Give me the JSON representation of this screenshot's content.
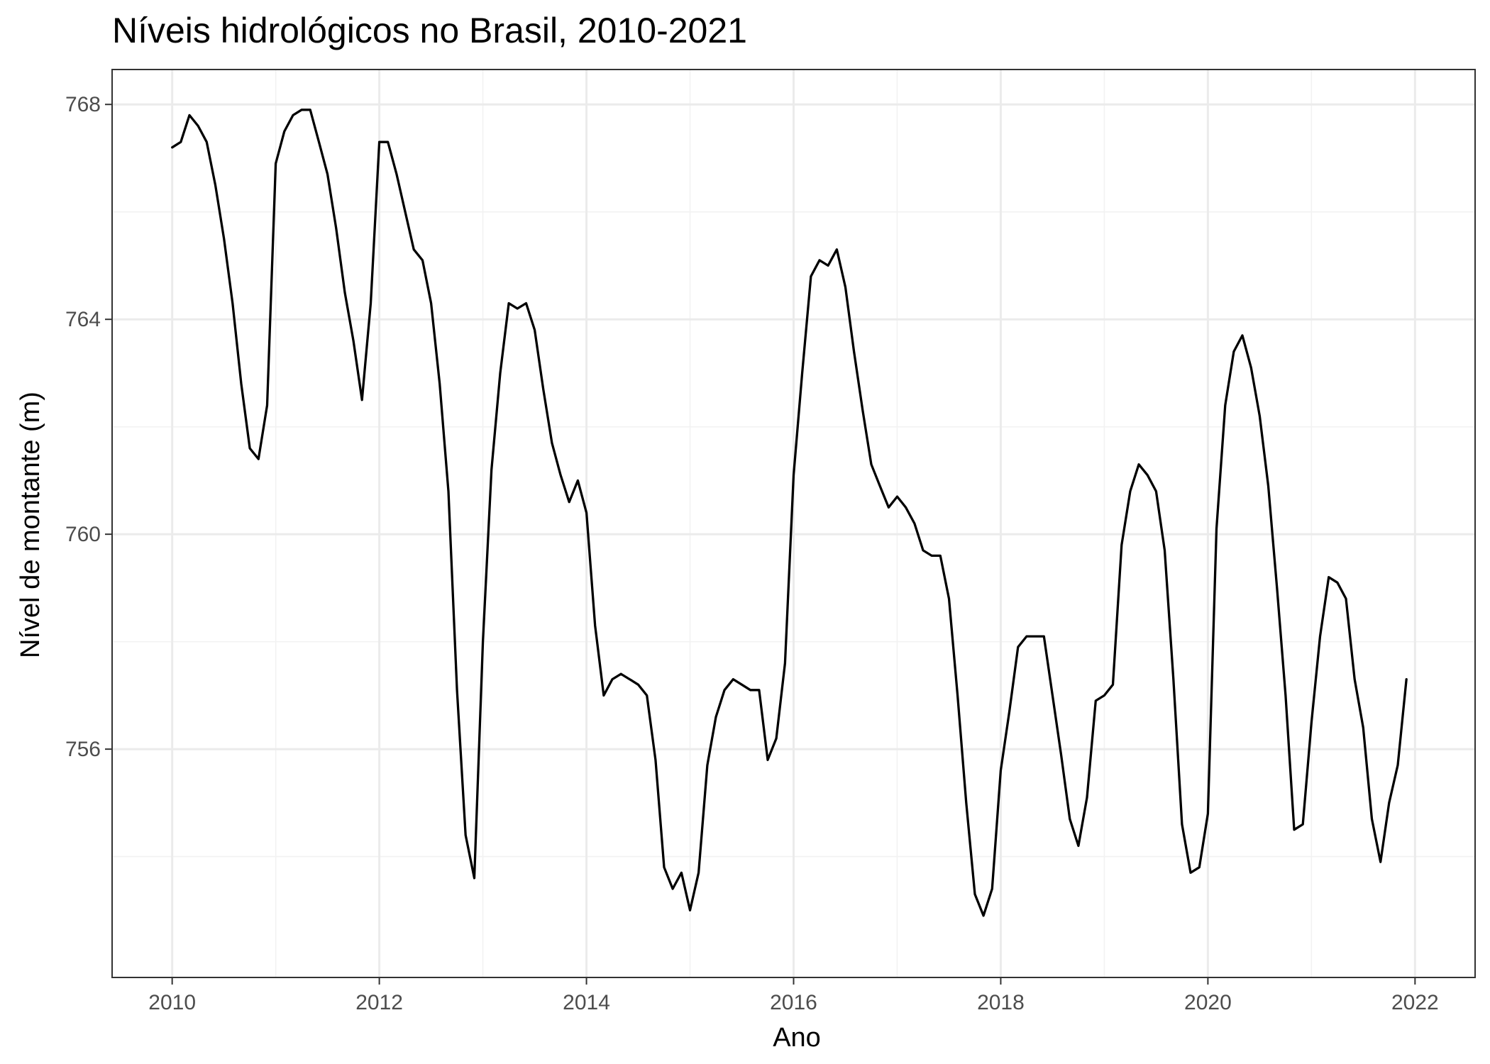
{
  "chart_data": {
    "type": "line",
    "title": "Níveis hidrológicos no Brasil, 2010-2021",
    "xlabel": "Ano",
    "ylabel": "Nível de montante (m)",
    "xlim": [
      2009.42,
      2022.58
    ],
    "ylim": [
      751.75,
      768.65
    ],
    "x_ticks": [
      2010,
      2012,
      2014,
      2016,
      2018,
      2020,
      2022
    ],
    "y_ticks": [
      756,
      760,
      764,
      768
    ],
    "grid": true,
    "legend": "none",
    "line_color": "#000000",
    "series": [
      {
        "x": [
          2010.0,
          2010.083,
          2010.167,
          2010.25,
          2010.333,
          2010.417,
          2010.5,
          2010.583,
          2010.667,
          2010.75,
          2010.833,
          2010.917,
          2011.0,
          2011.083,
          2011.167,
          2011.25,
          2011.333,
          2011.417,
          2011.5,
          2011.583,
          2011.667,
          2011.75,
          2011.833,
          2011.917,
          2012.0,
          2012.083,
          2012.167,
          2012.25,
          2012.333,
          2012.417,
          2012.5,
          2012.583,
          2012.667,
          2012.75,
          2012.833,
          2012.917,
          2013.0,
          2013.083,
          2013.167,
          2013.25,
          2013.333,
          2013.417,
          2013.5,
          2013.583,
          2013.667,
          2013.75,
          2013.833,
          2013.917,
          2014.0,
          2014.083,
          2014.167,
          2014.25,
          2014.333,
          2014.417,
          2014.5,
          2014.583,
          2014.667,
          2014.75,
          2014.833,
          2014.917,
          2015.0,
          2015.083,
          2015.167,
          2015.25,
          2015.333,
          2015.417,
          2015.5,
          2015.583,
          2015.667,
          2015.75,
          2015.833,
          2015.917,
          2016.0,
          2016.083,
          2016.167,
          2016.25,
          2016.333,
          2016.417,
          2016.5,
          2016.583,
          2016.667,
          2016.75,
          2016.833,
          2016.917,
          2017.0,
          2017.083,
          2017.167,
          2017.25,
          2017.333,
          2017.417,
          2017.5,
          2017.583,
          2017.667,
          2017.75,
          2017.833,
          2017.917,
          2018.0,
          2018.083,
          2018.167,
          2018.25,
          2018.333,
          2018.417,
          2018.5,
          2018.583,
          2018.667,
          2018.75,
          2018.833,
          2018.917,
          2019.0,
          2019.083,
          2019.167,
          2019.25,
          2019.333,
          2019.417,
          2019.5,
          2019.583,
          2019.667,
          2019.75,
          2019.833,
          2019.917,
          2020.0,
          2020.083,
          2020.167,
          2020.25,
          2020.333,
          2020.417,
          2020.5,
          2020.583,
          2020.667,
          2020.75,
          2020.833,
          2020.917,
          2021.0,
          2021.083,
          2021.167,
          2021.25,
          2021.333,
          2021.417,
          2021.5,
          2021.583,
          2021.667,
          2021.75,
          2021.833,
          2021.917
        ],
        "y": [
          767.2,
          767.3,
          767.8,
          767.6,
          767.3,
          766.5,
          765.5,
          764.3,
          762.8,
          761.6,
          761.4,
          762.4,
          766.9,
          767.5,
          767.8,
          767.9,
          767.9,
          767.3,
          766.7,
          765.7,
          764.5,
          763.6,
          762.5,
          764.3,
          767.3,
          767.3,
          766.7,
          766.0,
          765.3,
          765.1,
          764.3,
          762.8,
          760.8,
          757.1,
          754.4,
          753.6,
          758.0,
          761.2,
          763.0,
          764.3,
          764.2,
          764.3,
          763.8,
          762.7,
          761.7,
          761.1,
          760.6,
          761.0,
          760.4,
          758.3,
          757.0,
          757.3,
          757.4,
          757.3,
          757.2,
          757.0,
          755.8,
          753.8,
          753.4,
          753.7,
          753.0,
          753.7,
          755.7,
          756.6,
          757.1,
          757.3,
          757.2,
          757.1,
          757.1,
          755.8,
          756.2,
          757.6,
          761.1,
          763.0,
          764.8,
          765.1,
          765.0,
          765.3,
          764.6,
          763.4,
          762.3,
          761.3,
          760.9,
          760.5,
          760.7,
          760.5,
          760.2,
          759.7,
          759.6,
          759.6,
          758.8,
          757.0,
          755.0,
          753.3,
          752.9,
          753.4,
          755.6,
          756.7,
          757.9,
          758.1,
          758.1,
          758.1,
          757.0,
          755.9,
          754.7,
          754.2,
          755.1,
          756.9,
          757.0,
          757.2,
          759.8,
          760.8,
          761.3,
          761.1,
          760.8,
          759.7,
          757.3,
          754.6,
          753.7,
          753.8,
          754.8,
          760.1,
          762.4,
          763.4,
          763.7,
          763.1,
          762.2,
          760.9,
          759.0,
          757.0,
          754.5,
          754.6,
          756.5,
          758.1,
          759.2,
          759.1,
          758.8,
          757.3,
          756.4,
          754.7,
          753.9,
          755.0,
          755.7,
          757.3
        ]
      }
    ]
  }
}
